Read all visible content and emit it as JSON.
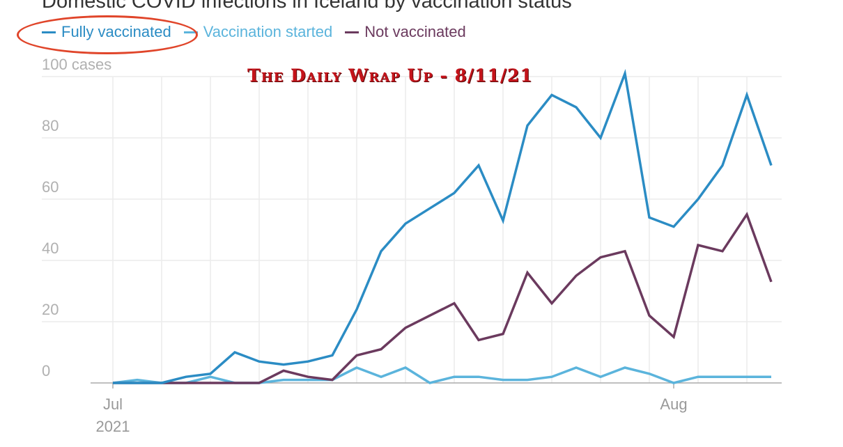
{
  "chart_data": {
    "type": "line",
    "title": "Domestic COVID infections in Iceland by vaccination status",
    "watermark": "The Daily Wrap Up - 8/11/21",
    "ylabel_unit": "cases",
    "ylim": [
      0,
      100
    ],
    "yticks": [
      "0",
      "20",
      "40",
      "60",
      "80",
      "100 cases"
    ],
    "ytick_values": [
      0,
      20,
      40,
      60,
      80,
      100
    ],
    "xticks": [
      {
        "index": 0,
        "label": "Jul",
        "sublabel": "2021"
      },
      {
        "index": 23,
        "label": "Aug",
        "sublabel": ""
      }
    ],
    "grid": true,
    "legend_position": "top-left",
    "highlighted_legend_item": "Fully vaccinated",
    "series": [
      {
        "name": "Fully vaccinated",
        "color": "#2b8cc4",
        "values": [
          0,
          0,
          0,
          2,
          3,
          10,
          7,
          6,
          7,
          9,
          24,
          43,
          52,
          57,
          62,
          71,
          53,
          84,
          94,
          90,
          80,
          101,
          54,
          51,
          60,
          71,
          94,
          71
        ]
      },
      {
        "name": "Vaccination started",
        "color": "#5bb4dc",
        "values": [
          0,
          1,
          0,
          0,
          2,
          0,
          0,
          1,
          1,
          1,
          5,
          2,
          5,
          0,
          2,
          2,
          1,
          1,
          2,
          5,
          2,
          5,
          3,
          0,
          2,
          2,
          2,
          2
        ]
      },
      {
        "name": "Not vaccinated",
        "color": "#6b3a5e",
        "values": [
          0,
          0,
          0,
          0,
          0,
          0,
          0,
          4,
          2,
          1,
          9,
          11,
          18,
          22,
          26,
          14,
          16,
          36,
          26,
          35,
          41,
          43,
          22,
          15,
          45,
          43,
          55,
          33
        ]
      }
    ]
  }
}
